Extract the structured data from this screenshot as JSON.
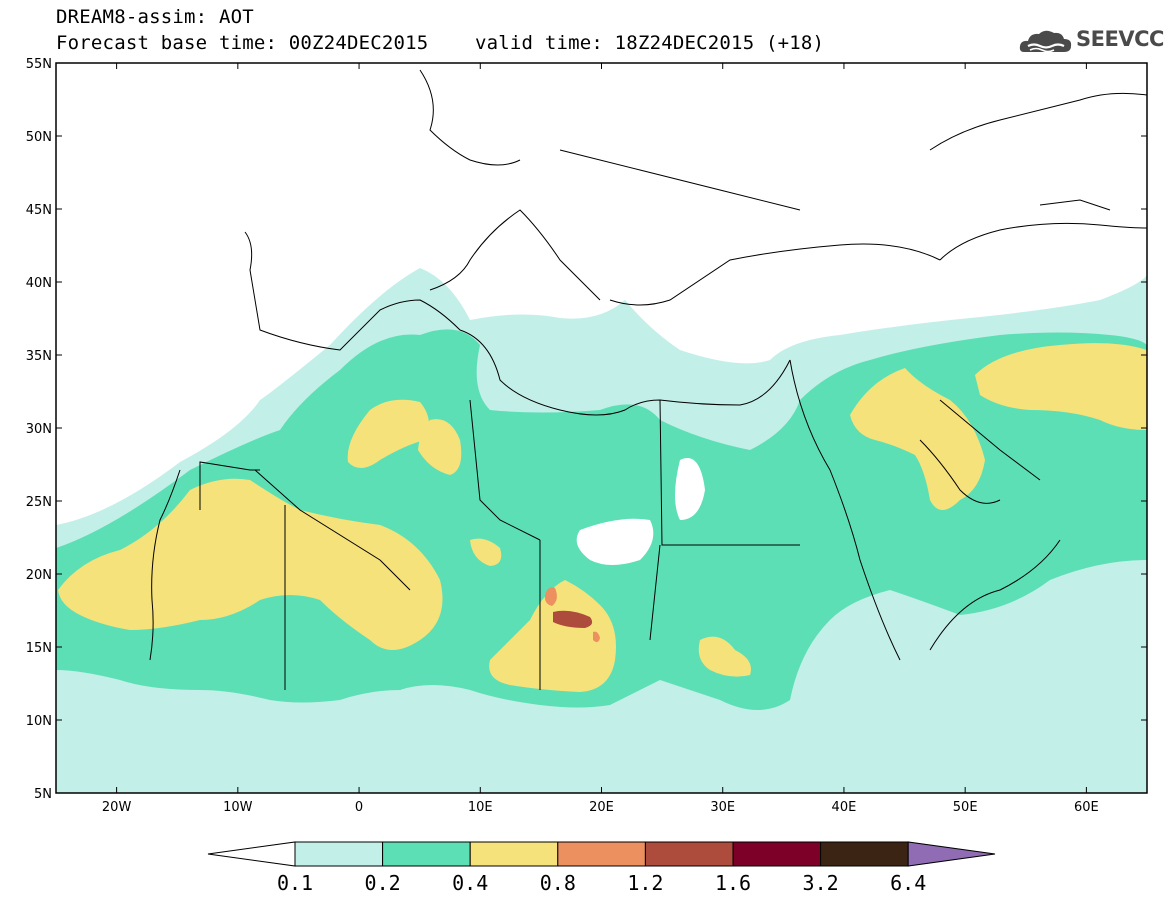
{
  "header": {
    "title_line1": "DREAM8-assim: AOT",
    "title_line2": "Forecast base time: 00Z24DEC2015    valid time: 18Z24DEC2015 (+18)",
    "logo_text": "SEEVCCC",
    "logo_icon": "cloud-icon"
  },
  "map": {
    "lon_range": [
      -25,
      65
    ],
    "lat_range": [
      5,
      55
    ],
    "x_ticks": [
      {
        "value": -20,
        "label": "20W"
      },
      {
        "value": -10,
        "label": "10W"
      },
      {
        "value": 0,
        "label": "0"
      },
      {
        "value": 10,
        "label": "10E"
      },
      {
        "value": 20,
        "label": "20E"
      },
      {
        "value": 30,
        "label": "30E"
      },
      {
        "value": 40,
        "label": "40E"
      },
      {
        "value": 50,
        "label": "50E"
      },
      {
        "value": 60,
        "label": "60E"
      }
    ],
    "y_ticks": [
      {
        "value": 5,
        "label": "5N"
      },
      {
        "value": 10,
        "label": "10N"
      },
      {
        "value": 15,
        "label": "15N"
      },
      {
        "value": 20,
        "label": "20N"
      },
      {
        "value": 25,
        "label": "25N"
      },
      {
        "value": 30,
        "label": "30N"
      },
      {
        "value": 35,
        "label": "35N"
      },
      {
        "value": 40,
        "label": "40N"
      },
      {
        "value": 45,
        "label": "45N"
      },
      {
        "value": 50,
        "label": "50N"
      },
      {
        "value": 55,
        "label": "55N"
      }
    ],
    "colors": {
      "c01": "#c3efe9",
      "c02": "#5ddfb6",
      "c04": "#f6e27a",
      "c08": "#ec9060",
      "c12": "#ad4c3c",
      "c16": "#7c0028",
      "c32": "#3b2413",
      "c64": "#8f6cb3"
    }
  },
  "colorbar": {
    "labels": [
      "0.1",
      "0.2",
      "0.4",
      "0.8",
      "1.2",
      "1.6",
      "3.2",
      "6.4"
    ],
    "colors": [
      "#c3efe9",
      "#5ddfb6",
      "#f6e27a",
      "#ec9060",
      "#ad4c3c",
      "#7c0028",
      "#3b2413"
    ],
    "low_color": "#ffffff",
    "high_color": "#8f6cb3"
  }
}
